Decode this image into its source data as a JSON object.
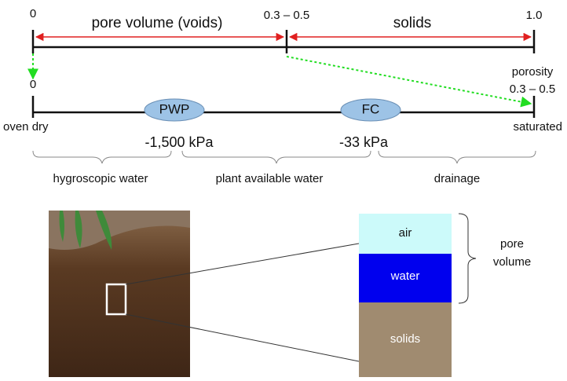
{
  "fraction_scale": {
    "start": "0",
    "pore_volume": "pore volume (voids)",
    "split": "0.3 – 0.5",
    "solids": "solids",
    "end": "1.0"
  },
  "water_scale": {
    "start": "0",
    "porosity": "porosity",
    "porosity_range": "0.3 – 0.5",
    "pwp": "PWP",
    "fc": "FC",
    "oven_dry": "oven dry",
    "saturated": "saturated",
    "pwp_pressure": "-1,500 kPa",
    "fc_pressure": "-33 kPa",
    "zones": [
      "hygroscopic water",
      "plant available water",
      "drainage"
    ]
  },
  "soil_column": {
    "air": "air",
    "water": "water",
    "solids": "solids",
    "pore_volume": [
      "pore",
      "volume"
    ]
  }
}
